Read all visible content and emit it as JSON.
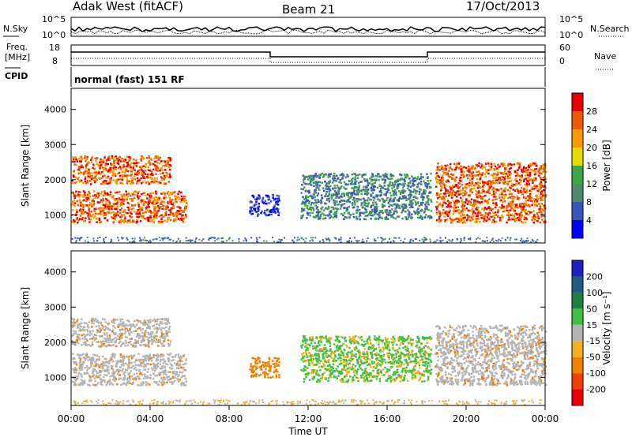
{
  "header": {
    "station": "Adak West (fitACF)",
    "beam": "Beam 21",
    "date": "17/Oct/2013"
  },
  "strip_labels": {
    "nsky": "N.Sky",
    "nsearch": "N.Search",
    "freq": "Freq.",
    "freq_unit": "[MHz]",
    "nave": "Nave",
    "cpid": "CPID",
    "cpid_text": "normal (fast) 151 RF"
  },
  "noise_ticks_left": [
    "10^5",
    "10^0"
  ],
  "noise_ticks_right": [
    "10^5",
    "10^0"
  ],
  "freq_ticks": [
    "18",
    "8"
  ],
  "nave_ticks": [
    "60",
    "0"
  ],
  "colors": {
    "power_scale": [
      "#0000ff",
      "#3a56b8",
      "#508a6e",
      "#3da84a",
      "#e6dc00",
      "#f59a00",
      "#f05a00",
      "#e80000"
    ],
    "velocity_scale": [
      "#e80000",
      "#f04000",
      "#f08000",
      "#f4b020",
      "#b4b4b4",
      "#40c040",
      "#208040",
      "#205a80",
      "#2020c0"
    ]
  },
  "chart_data": [
    {
      "type": "heatmap",
      "panel": "power",
      "ylabel": "Slant Range [km]",
      "y_ticks": [
        1000,
        2000,
        3000,
        4000
      ],
      "ylim": [
        200,
        4600
      ],
      "xlim_hours": [
        0,
        24
      ],
      "colorbar_label": "Power [dB]",
      "colorbar_ticks": [
        4,
        8,
        12,
        16,
        20,
        24,
        28
      ],
      "echo_regions": [
        {
          "t_start": 0.0,
          "t_end": 5.8,
          "range_min": 800,
          "range_max": 1700,
          "level": "high"
        },
        {
          "t_start": 0.0,
          "t_end": 5.0,
          "range_min": 1900,
          "range_max": 2700,
          "level": "high"
        },
        {
          "t_start": 9.0,
          "t_end": 10.5,
          "range_min": 1000,
          "range_max": 1600,
          "level": "low"
        },
        {
          "t_start": 11.6,
          "t_end": 18.2,
          "range_min": 900,
          "range_max": 2200,
          "level": "medium"
        },
        {
          "t_start": 18.4,
          "t_end": 24.0,
          "range_min": 800,
          "range_max": 2500,
          "level": "high"
        }
      ]
    },
    {
      "type": "heatmap",
      "panel": "velocity",
      "ylabel": "Slant Range [km]",
      "y_ticks": [
        1000,
        2000,
        3000,
        4000
      ],
      "ylim": [
        200,
        4600
      ],
      "xlim_hours": [
        0,
        24
      ],
      "xlabel": "Time UT",
      "x_ticks": [
        "00:00",
        "04:00",
        "08:00",
        "12:00",
        "16:00",
        "20:00",
        "00:00"
      ],
      "colorbar_label": "Velocity [m s⁻¹]",
      "colorbar_ticks": [
        -200,
        -100,
        -50,
        -15,
        15,
        50,
        100,
        200
      ]
    }
  ]
}
